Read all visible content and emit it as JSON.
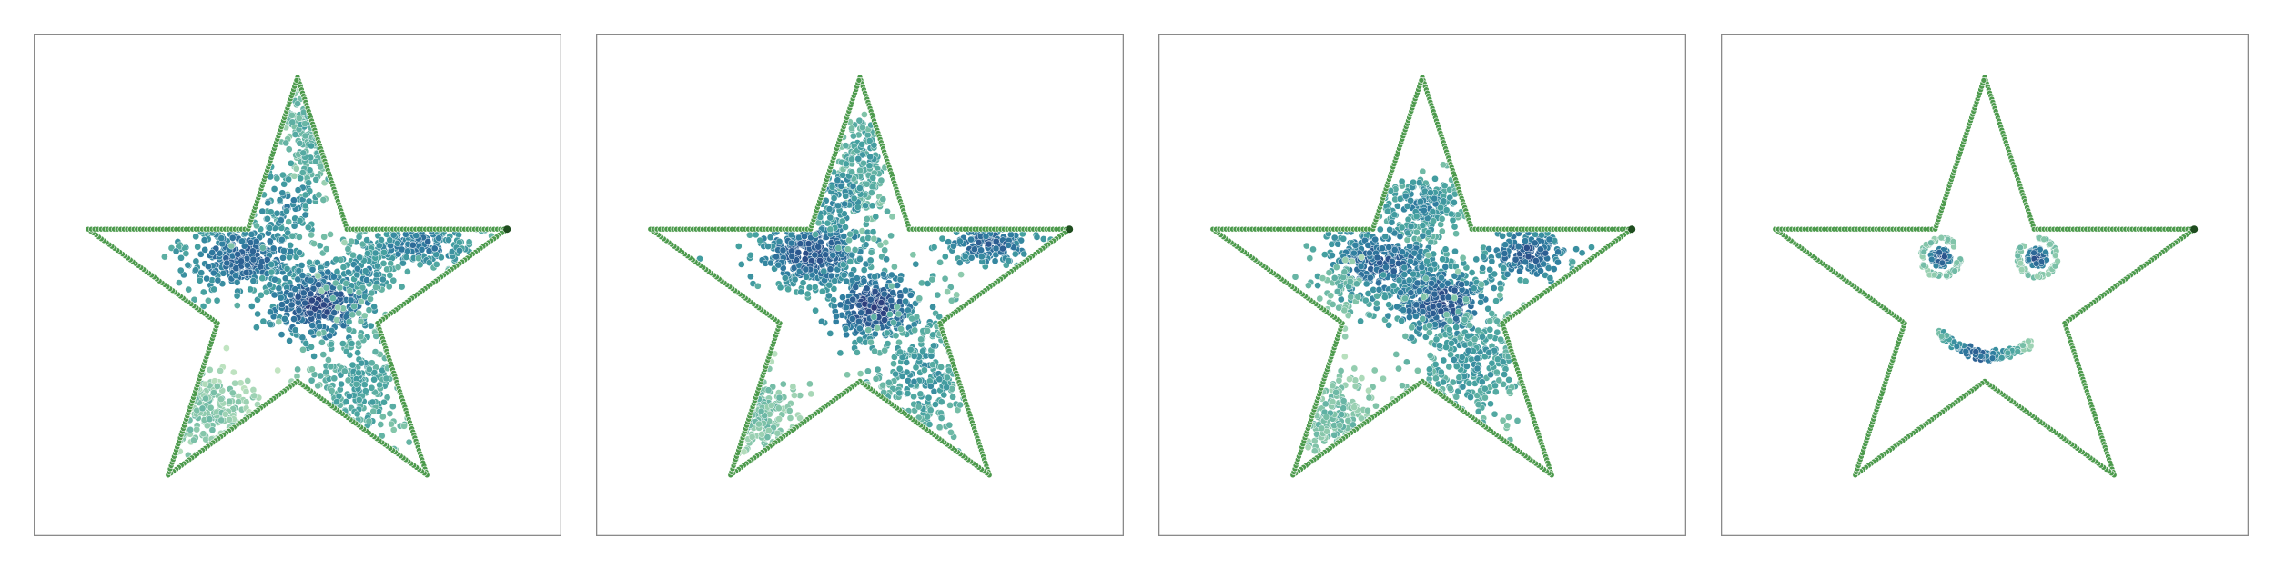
{
  "chart_data": [
    {
      "type": "scatter",
      "title": "",
      "xlabel": "",
      "ylabel": "",
      "grid": false,
      "legend": "none",
      "boundary": {
        "shape": "star",
        "color": "#4c9a4c",
        "vertices": [
          [
            0.0,
            1.0
          ],
          [
            0.2245,
            0.309
          ],
          [
            0.9511,
            0.309
          ],
          [
            0.3633,
            -0.118
          ],
          [
            0.5878,
            -0.809
          ],
          [
            0.0,
            -0.382
          ],
          [
            -0.5878,
            -0.809
          ],
          [
            -0.3633,
            -0.118
          ],
          [
            -0.9511,
            0.309
          ],
          [
            -0.2245,
            0.309
          ]
        ]
      },
      "colormap": [
        "#c9e8c4",
        "#7fc3a8",
        "#45a1a0",
        "#2f7da0",
        "#2b5990",
        "#2d3375"
      ],
      "clusters": [
        {
          "center": [
            0.05,
            0.75
          ],
          "spread": [
            0.05,
            0.12
          ],
          "count": 140,
          "density": 0.35
        },
        {
          "center": [
            -0.25,
            0.18
          ],
          "spread": [
            0.14,
            0.08
          ],
          "count": 360,
          "density": 0.75
        },
        {
          "center": [
            0.1,
            -0.03
          ],
          "spread": [
            0.11,
            0.08
          ],
          "count": 340,
          "density": 0.9
        },
        {
          "center": [
            0.55,
            0.24
          ],
          "spread": [
            0.14,
            0.05
          ],
          "count": 200,
          "density": 0.65
        },
        {
          "center": [
            0.3,
            0.12
          ],
          "spread": [
            0.08,
            0.06
          ],
          "count": 80,
          "density": 0.55
        },
        {
          "center": [
            0.28,
            -0.4
          ],
          "spread": [
            0.12,
            0.18
          ],
          "count": 230,
          "density": 0.4
        },
        {
          "center": [
            -0.43,
            -0.52
          ],
          "spread": [
            0.12,
            0.1
          ],
          "count": 170,
          "density": 0.2
        },
        {
          "center": [
            -0.05,
            0.42
          ],
          "spread": [
            0.1,
            0.1
          ],
          "count": 90,
          "density": 0.55
        }
      ]
    },
    {
      "type": "scatter",
      "title": "",
      "xlabel": "",
      "ylabel": "",
      "grid": false,
      "legend": "none",
      "boundary": {
        "shape": "star",
        "color": "#4c9a4c",
        "vertices": [
          [
            0.0,
            1.0
          ],
          [
            0.2245,
            0.309
          ],
          [
            0.9511,
            0.309
          ],
          [
            0.3633,
            -0.118
          ],
          [
            0.5878,
            -0.809
          ],
          [
            0.0,
            -0.382
          ],
          [
            -0.5878,
            -0.809
          ],
          [
            -0.3633,
            -0.118
          ],
          [
            -0.9511,
            0.309
          ],
          [
            -0.2245,
            0.309
          ]
        ]
      },
      "colormap": [
        "#c9e8c4",
        "#7fc3a8",
        "#45a1a0",
        "#2f7da0",
        "#2b5990",
        "#2d3375"
      ],
      "clusters": [
        {
          "center": [
            0.02,
            0.62
          ],
          "spread": [
            0.06,
            0.13
          ],
          "count": 160,
          "density": 0.4
        },
        {
          "center": [
            -0.22,
            0.2
          ],
          "spread": [
            0.13,
            0.08
          ],
          "count": 360,
          "density": 0.8
        },
        {
          "center": [
            0.06,
            -0.04
          ],
          "spread": [
            0.1,
            0.08
          ],
          "count": 340,
          "density": 0.9
        },
        {
          "center": [
            0.58,
            0.24
          ],
          "spread": [
            0.12,
            0.05
          ],
          "count": 170,
          "density": 0.75
        },
        {
          "center": [
            0.28,
            -0.35
          ],
          "spread": [
            0.13,
            0.18
          ],
          "count": 240,
          "density": 0.45
        },
        {
          "center": [
            -0.48,
            -0.52
          ],
          "spread": [
            0.1,
            0.1
          ],
          "count": 150,
          "density": 0.25
        },
        {
          "center": [
            -0.08,
            0.45
          ],
          "spread": [
            0.08,
            0.1
          ],
          "count": 100,
          "density": 0.55
        }
      ]
    },
    {
      "type": "scatter",
      "title": "",
      "xlabel": "",
      "ylabel": "",
      "grid": false,
      "legend": "none",
      "boundary": {
        "shape": "star",
        "color": "#4c9a4c",
        "vertices": [
          [
            0.0,
            1.0
          ],
          [
            0.2245,
            0.309
          ],
          [
            0.9511,
            0.309
          ],
          [
            0.3633,
            -0.118
          ],
          [
            0.5878,
            -0.809
          ],
          [
            0.0,
            -0.382
          ],
          [
            -0.5878,
            -0.809
          ],
          [
            -0.3633,
            -0.118
          ],
          [
            -0.9511,
            0.309
          ],
          [
            -0.2245,
            0.309
          ]
        ]
      },
      "colormap": [
        "#c9e8c4",
        "#7fc3a8",
        "#45a1a0",
        "#2f7da0",
        "#2b5990",
        "#2d3375"
      ],
      "clusters": [
        {
          "center": [
            0.0,
            0.42
          ],
          "spread": [
            0.1,
            0.07
          ],
          "count": 200,
          "density": 0.55
        },
        {
          "center": [
            -0.18,
            0.16
          ],
          "spread": [
            0.14,
            0.09
          ],
          "count": 360,
          "density": 0.75
        },
        {
          "center": [
            0.08,
            -0.02
          ],
          "spread": [
            0.11,
            0.08
          ],
          "count": 320,
          "density": 0.85
        },
        {
          "center": [
            0.48,
            0.2
          ],
          "spread": [
            0.1,
            0.06
          ],
          "count": 170,
          "density": 0.8
        },
        {
          "center": [
            0.22,
            -0.3
          ],
          "spread": [
            0.14,
            0.15
          ],
          "count": 260,
          "density": 0.45
        },
        {
          "center": [
            -0.4,
            -0.55
          ],
          "spread": [
            0.12,
            0.1
          ],
          "count": 160,
          "density": 0.25
        },
        {
          "center": [
            -0.36,
            0.03
          ],
          "spread": [
            0.06,
            0.08
          ],
          "count": 50,
          "density": 0.3
        }
      ]
    },
    {
      "type": "scatter",
      "title": "",
      "xlabel": "",
      "ylabel": "",
      "grid": false,
      "legend": "none",
      "boundary": {
        "shape": "star",
        "color": "#4c9a4c",
        "vertices": [
          [
            0.0,
            1.0
          ],
          [
            0.2245,
            0.309
          ],
          [
            0.9511,
            0.309
          ],
          [
            0.3633,
            -0.118
          ],
          [
            0.5878,
            -0.809
          ],
          [
            0.0,
            -0.382
          ],
          [
            -0.5878,
            -0.809
          ],
          [
            -0.3633,
            -0.118
          ],
          [
            -0.9511,
            0.309
          ],
          [
            -0.2245,
            0.309
          ]
        ]
      },
      "colormap": [
        "#c9e8c4",
        "#7fc3a8",
        "#45a1a0",
        "#2f7da0",
        "#2b5990",
        "#2d3375"
      ],
      "features": {
        "eyes": [
          {
            "center": [
              -0.2,
              0.18
            ],
            "ring_radius": 0.085,
            "core_radius": 0.045
          },
          {
            "center": [
              0.24,
              0.18
            ],
            "ring_radius": 0.085,
            "core_radius": 0.045
          }
        ],
        "mouth": {
          "center": [
            0.0,
            -0.22
          ],
          "half_width": 0.21,
          "depth": 0.08
        }
      }
    }
  ]
}
